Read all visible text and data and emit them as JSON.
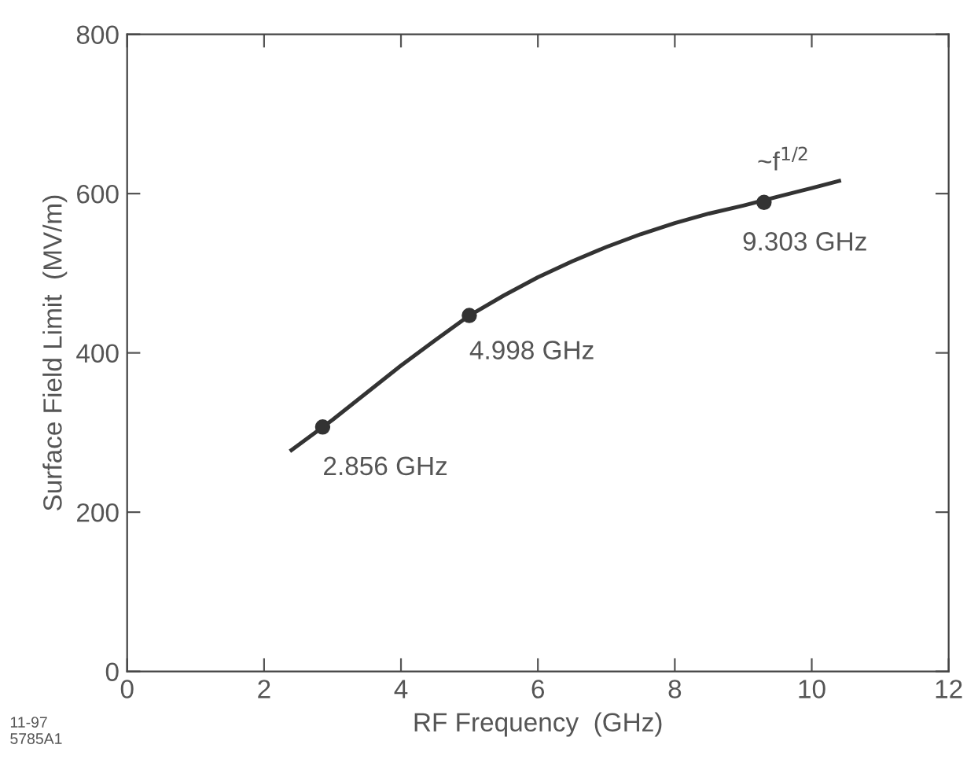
{
  "chart_data": {
    "type": "line",
    "xlabel": "RF Frequency  (GHz)",
    "ylabel": "Surface Field Limit  (MV/m)",
    "xlim": [
      0,
      12
    ],
    "xticks": [
      0,
      2,
      4,
      6,
      8,
      10,
      12
    ],
    "ylim": [
      0,
      800
    ],
    "yticks": [
      0,
      200,
      400,
      600,
      800
    ],
    "grid": false,
    "legend": false,
    "series": [
      {
        "color": "#333333",
        "marker": "none",
        "line_style": "solid",
        "x": [
          2.4,
          3,
          3.5,
          4,
          4.5,
          5,
          5.5,
          6,
          6.5,
          7,
          7.5,
          8,
          8.5,
          9,
          9.5,
          10,
          10.4
        ],
        "values": [
          278,
          316,
          350,
          384,
          416,
          447,
          472,
          495,
          515,
          533,
          549,
          563,
          575,
          585,
          596,
          607,
          616
        ]
      },
      {
        "type": "scatter",
        "color": "#333333",
        "marker": "circle",
        "x": [
          2.856,
          4.998,
          9.303
        ],
        "values": [
          307,
          447,
          589
        ]
      }
    ],
    "annotations": [
      {
        "text": "2.856 GHz",
        "x": 2.856,
        "y": 307
      },
      {
        "text": "4.998 GHz",
        "x": 4.998,
        "y": 447
      },
      {
        "text": "9.303 GHz",
        "x": 9.303,
        "y": 589
      },
      {
        "text": "~f$^{1/2}$",
        "x": 10.0,
        "y": 607
      },
      "11-97\n5785A1"
    ]
  }
}
